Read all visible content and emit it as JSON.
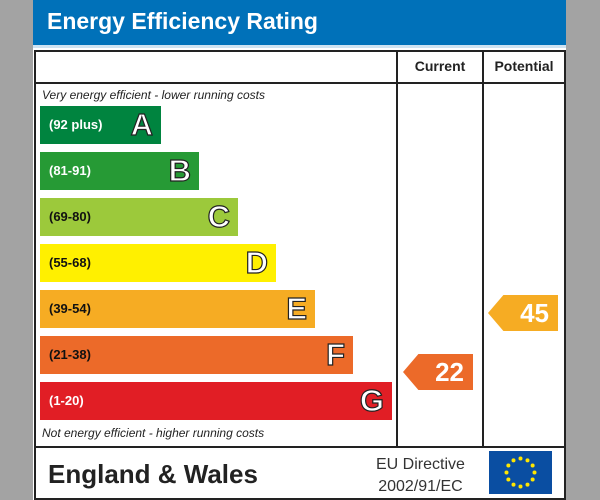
{
  "title": "Energy Efficiency Rating",
  "columns": {
    "current": "Current",
    "potential": "Potential"
  },
  "top_note": "Very energy efficient - lower running costs",
  "bottom_note": "Not energy efficient - higher running costs",
  "bands": [
    {
      "range": "(92 plus)",
      "letter": "A",
      "color": "#00843f",
      "text_color": "#ffffff"
    },
    {
      "range": "(81-91)",
      "letter": "B",
      "color": "#269a35",
      "text_color": "#ffffff"
    },
    {
      "range": "(69-80)",
      "letter": "C",
      "color": "#9cc93b",
      "text_color": "#111111"
    },
    {
      "range": "(55-68)",
      "letter": "D",
      "color": "#fff000",
      "text_color": "#111111"
    },
    {
      "range": "(39-54)",
      "letter": "E",
      "color": "#f6ac23",
      "text_color": "#111111"
    },
    {
      "range": "(21-38)",
      "letter": "F",
      "color": "#ec6a29",
      "text_color": "#111111"
    },
    {
      "range": "(1-20)",
      "letter": "G",
      "color": "#e11e25",
      "text_color": "#ffffff"
    }
  ],
  "current": {
    "value": "22",
    "band": "F",
    "color": "#ec6a29"
  },
  "potential": {
    "value": "45",
    "band": "E",
    "color": "#f6ac23"
  },
  "footer": {
    "region": "England & Wales",
    "directive_line1": "EU Directive",
    "directive_line2": "2002/91/EC"
  }
}
